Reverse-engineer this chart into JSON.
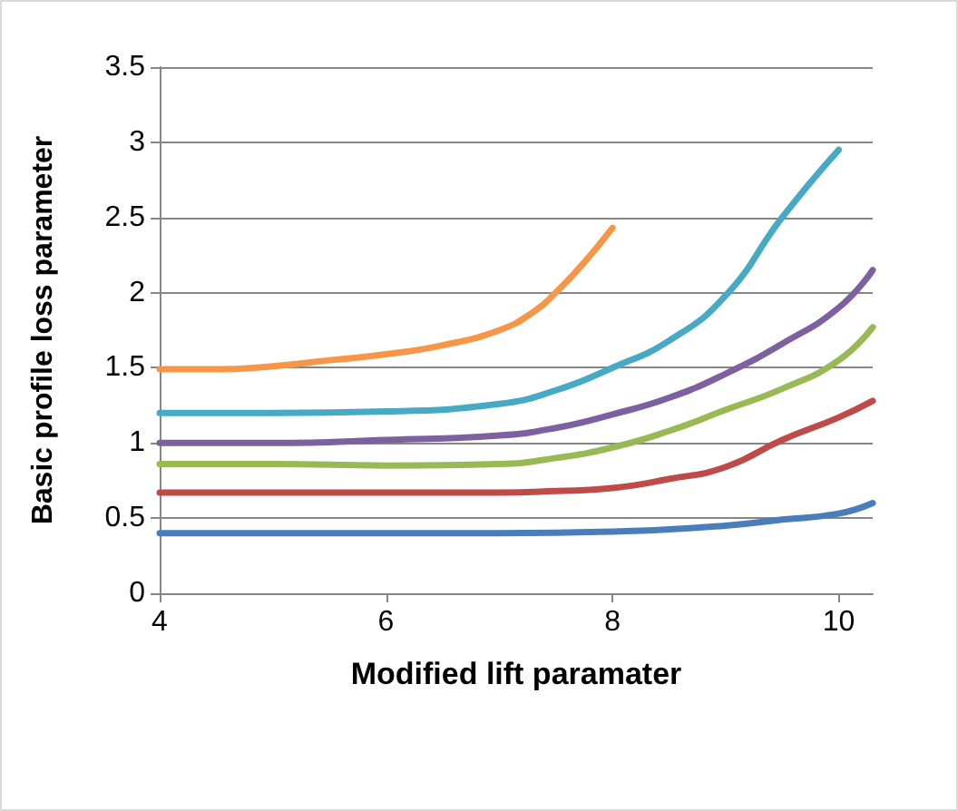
{
  "chart_data": {
    "type": "line",
    "xlabel": "Modified lift paramater",
    "ylabel": "Basic profile loss parameter",
    "xlim": [
      4,
      10.3
    ],
    "xticks": [
      4,
      6,
      8,
      10
    ],
    "ylim": [
      0,
      3.5
    ],
    "yticks": [
      0,
      0.5,
      1,
      1.5,
      2,
      2.5,
      3,
      3.5
    ],
    "grid": "y",
    "marker": "none",
    "line_style": "solid",
    "series": [
      {
        "color": "#4a7ebb",
        "x": [
          4,
          5,
          6,
          7,
          8,
          9,
          9.5,
          10,
          10.3
        ],
        "values": [
          0.4,
          0.4,
          0.4,
          0.4,
          0.41,
          0.45,
          0.49,
          0.53,
          0.6
        ]
      },
      {
        "color": "#be4b48",
        "x": [
          4,
          5,
          6,
          7,
          7.5,
          8,
          8.5,
          9,
          9.5,
          10,
          10.3
        ],
        "values": [
          0.67,
          0.67,
          0.67,
          0.67,
          0.68,
          0.7,
          0.76,
          0.84,
          1.02,
          1.17,
          1.28
        ]
      },
      {
        "color": "#98b954",
        "x": [
          4,
          5,
          6,
          7,
          7.5,
          8,
          8.5,
          9,
          9.5,
          10,
          10.3
        ],
        "values": [
          0.86,
          0.86,
          0.85,
          0.86,
          0.9,
          0.97,
          1.08,
          1.22,
          1.36,
          1.55,
          1.77
        ]
      },
      {
        "color": "#7d60a0",
        "x": [
          4,
          5,
          6,
          7,
          7.5,
          8,
          8.5,
          9,
          9.5,
          10,
          10.3
        ],
        "values": [
          1,
          1,
          1.02,
          1.05,
          1.1,
          1.19,
          1.3,
          1.46,
          1.66,
          1.9,
          2.15
        ]
      },
      {
        "color": "#46aac5",
        "x": [
          4,
          5,
          6,
          7,
          7.5,
          8,
          8.5,
          9,
          9.5,
          10
        ],
        "values": [
          1.2,
          1.2,
          1.21,
          1.26,
          1.35,
          1.5,
          1.68,
          1.98,
          2.5,
          2.95
        ]
      },
      {
        "color": "#f79646",
        "x": [
          4,
          4.5,
          5,
          5.5,
          6,
          6.5,
          7,
          7.3,
          7.5,
          7.75,
          8
        ],
        "values": [
          1.49,
          1.49,
          1.51,
          1.55,
          1.59,
          1.65,
          1.75,
          1.87,
          2,
          2.2,
          2.43
        ]
      }
    ]
  }
}
